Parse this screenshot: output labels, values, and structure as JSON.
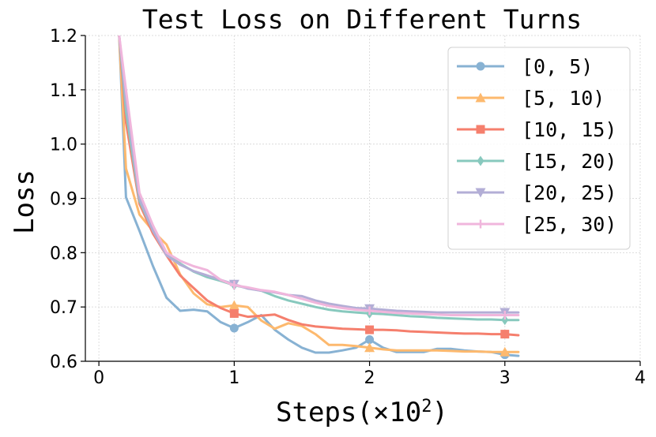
{
  "chart_data": {
    "type": "line",
    "title": "Test Loss on Different Turns",
    "xlabel": "Steps(×10",
    "xlabel_sup": "2",
    "xlabel_close": ")",
    "ylabel": "Loss",
    "xlim": [
      -0.1,
      4
    ],
    "ylim": [
      0.6,
      1.2
    ],
    "xticks": [
      "0",
      "1",
      "2",
      "3",
      "4"
    ],
    "yticks": [
      "0.6",
      "0.7",
      "0.8",
      "0.9",
      "1.0",
      "1.1",
      "1.2"
    ],
    "grid": true,
    "legend_position": "top-right",
    "series": [
      {
        "name": "[0, 5)",
        "color": "#88b2d3",
        "marker": "circle",
        "x": [
          0.15,
          0.2,
          0.3,
          0.4,
          0.5,
          0.6,
          0.7,
          0.8,
          0.9,
          1.0,
          1.1,
          1.2,
          1.3,
          1.4,
          1.5,
          1.6,
          1.7,
          1.8,
          1.9,
          2.0,
          2.1,
          2.2,
          2.3,
          2.4,
          2.5,
          2.6,
          2.7,
          2.8,
          2.9,
          3.0,
          3.1
        ],
        "y": [
          1.2,
          0.902,
          0.84,
          0.775,
          0.717,
          0.693,
          0.695,
          0.692,
          0.672,
          0.661,
          0.672,
          0.685,
          0.658,
          0.64,
          0.625,
          0.616,
          0.616,
          0.62,
          0.625,
          0.64,
          0.625,
          0.617,
          0.617,
          0.617,
          0.623,
          0.623,
          0.62,
          0.618,
          0.617,
          0.612,
          0.61
        ],
        "markers_at": [
          1.0,
          2.0,
          3.0
        ]
      },
      {
        "name": "[5, 10)",
        "color": "#fdb96e",
        "marker": "triangle-up",
        "x": [
          0.15,
          0.2,
          0.3,
          0.4,
          0.5,
          0.6,
          0.7,
          0.8,
          0.9,
          1.0,
          1.1,
          1.2,
          1.3,
          1.4,
          1.5,
          1.6,
          1.7,
          1.8,
          1.9,
          2.0,
          2.1,
          2.2,
          2.3,
          2.4,
          2.5,
          2.6,
          2.7,
          2.8,
          2.9,
          3.0,
          3.1
        ],
        "y": [
          1.2,
          0.955,
          0.87,
          0.84,
          0.815,
          0.76,
          0.725,
          0.705,
          0.7,
          0.703,
          0.7,
          0.675,
          0.66,
          0.67,
          0.665,
          0.65,
          0.63,
          0.63,
          0.628,
          0.625,
          0.622,
          0.62,
          0.62,
          0.62,
          0.62,
          0.619,
          0.618,
          0.618,
          0.617,
          0.617,
          0.617
        ],
        "markers_at": [
          1.0,
          2.0,
          3.0
        ]
      },
      {
        "name": "[10, 15)",
        "color": "#f57f6d",
        "marker": "square",
        "x": [
          0.15,
          0.2,
          0.3,
          0.4,
          0.5,
          0.6,
          0.7,
          0.8,
          0.9,
          1.0,
          1.1,
          1.2,
          1.3,
          1.4,
          1.5,
          1.6,
          1.7,
          1.8,
          1.9,
          2.0,
          2.1,
          2.2,
          2.3,
          2.4,
          2.5,
          2.6,
          2.7,
          2.8,
          2.9,
          3.0,
          3.1
        ],
        "y": [
          1.2,
          1.04,
          0.89,
          0.835,
          0.795,
          0.758,
          0.735,
          0.712,
          0.698,
          0.688,
          0.682,
          0.684,
          0.686,
          0.676,
          0.668,
          0.664,
          0.662,
          0.66,
          0.659,
          0.658,
          0.658,
          0.657,
          0.655,
          0.654,
          0.653,
          0.652,
          0.651,
          0.651,
          0.65,
          0.65,
          0.648
        ],
        "markers_at": [
          1.0,
          2.0,
          3.0
        ]
      },
      {
        "name": "[15, 20)",
        "color": "#88c9be",
        "marker": "diamond",
        "x": [
          0.15,
          0.2,
          0.3,
          0.4,
          0.5,
          0.6,
          0.7,
          0.8,
          0.9,
          1.0,
          1.1,
          1.2,
          1.3,
          1.4,
          1.5,
          1.6,
          1.7,
          1.8,
          1.9,
          2.0,
          2.1,
          2.2,
          2.3,
          2.4,
          2.5,
          2.6,
          2.7,
          2.8,
          2.9,
          3.0,
          3.1
        ],
        "y": [
          1.2,
          1.06,
          0.895,
          0.84,
          0.8,
          0.78,
          0.765,
          0.755,
          0.748,
          0.74,
          0.735,
          0.73,
          0.72,
          0.712,
          0.706,
          0.7,
          0.695,
          0.692,
          0.69,
          0.688,
          0.687,
          0.685,
          0.683,
          0.682,
          0.68,
          0.679,
          0.678,
          0.677,
          0.677,
          0.676,
          0.676
        ],
        "markers_at": [
          1.0,
          2.0,
          3.0
        ]
      },
      {
        "name": "[20, 25)",
        "color": "#b3aed6",
        "marker": "triangle-down",
        "x": [
          0.15,
          0.2,
          0.3,
          0.4,
          0.5,
          0.6,
          0.7,
          0.8,
          0.9,
          1.0,
          1.1,
          1.2,
          1.3,
          1.4,
          1.5,
          1.6,
          1.7,
          1.8,
          1.9,
          2.0,
          2.1,
          2.2,
          2.3,
          2.4,
          2.5,
          2.6,
          2.7,
          2.8,
          2.9,
          3.0,
          3.1
        ],
        "y": [
          1.2,
          1.08,
          0.9,
          0.84,
          0.795,
          0.778,
          0.766,
          0.758,
          0.75,
          0.742,
          0.734,
          0.73,
          0.727,
          0.722,
          0.72,
          0.712,
          0.706,
          0.702,
          0.698,
          0.697,
          0.695,
          0.693,
          0.692,
          0.691,
          0.69,
          0.69,
          0.69,
          0.69,
          0.69,
          0.69,
          0.69
        ],
        "markers_at": [
          1.0,
          2.0,
          3.0
        ]
      },
      {
        "name": "[25, 30)",
        "color": "#f0b6dc",
        "marker": "plus",
        "x": [
          0.15,
          0.2,
          0.3,
          0.4,
          0.5,
          0.6,
          0.7,
          0.8,
          0.9,
          1.0,
          1.1,
          1.2,
          1.3,
          1.4,
          1.5,
          1.6,
          1.7,
          1.8,
          1.9,
          2.0,
          2.1,
          2.2,
          2.3,
          2.4,
          2.5,
          2.6,
          2.7,
          2.8,
          2.9,
          3.0,
          3.1
        ],
        "y": [
          1.2,
          1.1,
          0.91,
          0.85,
          0.8,
          0.785,
          0.775,
          0.768,
          0.75,
          0.74,
          0.736,
          0.731,
          0.728,
          0.722,
          0.715,
          0.708,
          0.702,
          0.698,
          0.695,
          0.693,
          0.691,
          0.689,
          0.688,
          0.687,
          0.686,
          0.685,
          0.685,
          0.685,
          0.685,
          0.685,
          0.685
        ],
        "markers_at": [
          1.0,
          2.0,
          3.0
        ]
      }
    ]
  }
}
